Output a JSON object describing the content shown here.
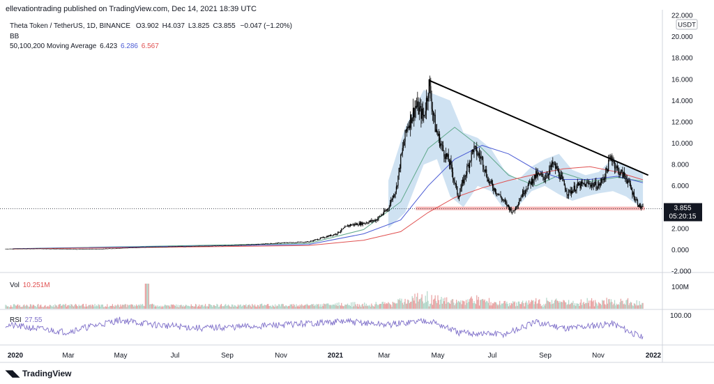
{
  "publisher_line": "ellevationtrading published on TradingView.com, Dec 14, 2021 18:39 UTC",
  "legend": {
    "symbol": "Theta Token / TetherUS, 1D, BINANCE",
    "ohlc": [
      {
        "k": "O",
        "v": "3.902"
      },
      {
        "k": "H",
        "v": "4.037"
      },
      {
        "k": "L",
        "v": "3.825"
      },
      {
        "k": "C",
        "v": "3.855"
      }
    ],
    "change": "−0.047 (−1.20%)",
    "bb_label": "BB",
    "ma_label": "50,100,200 Moving Average",
    "ma_values": [
      "6.423",
      "6.286",
      "6.567"
    ],
    "vol_label": "Vol",
    "vol_value": "10.251M",
    "rsi_label": "RSI",
    "rsi_value": "27.55"
  },
  "colors": {
    "up": "#26a69a",
    "down": "#000000",
    "candle": "#000000",
    "bb_fill": "#a8cbe8",
    "ma50": "#5fa88a",
    "ma100": "#4a5bd4",
    "ma200": "#e05050",
    "trendline": "#000000",
    "support": "#f5b5b5",
    "rsi": "#7e6fc9",
    "vol_up": "#e8a0a0",
    "vol_down": "#b0d6c8",
    "price_tag": "#131722"
  },
  "brand": "TradingView",
  "chart_data": {
    "type": "line",
    "title": "Theta Token / TetherUS, 1D, BINANCE",
    "price_axis_currency": "USDT",
    "y_ticks": [
      "22.000",
      "20.000",
      "18.000",
      "16.000",
      "14.000",
      "12.000",
      "10.000",
      "8.000",
      "6.000",
      "4.000",
      "2.000",
      "0.000",
      "-2.000"
    ],
    "ylim": [
      -2,
      22
    ],
    "x_ticks": [
      "2020",
      "Mar",
      "May",
      "Jul",
      "Sep",
      "Nov",
      "2021",
      "Mar",
      "May",
      "Jul",
      "Sep",
      "Nov",
      "2022"
    ],
    "xlim": [
      "2019-12-24",
      "2022-01-05"
    ],
    "last_price": "3.855",
    "countdown": "05:20:15",
    "vol_tick": "100M",
    "rsi_tick": "100.00",
    "series": [
      {
        "name": "Price",
        "x": [
          "2019-12-24",
          "2020-02-01",
          "2020-03-12",
          "2020-04-10",
          "2020-05-15",
          "2020-06-01",
          "2020-07-01",
          "2020-08-01",
          "2020-09-01",
          "2020-10-01",
          "2020-11-01",
          "2020-12-01",
          "2021-01-01",
          "2021-01-15",
          "2021-02-01",
          "2021-02-15",
          "2021-02-28",
          "2021-03-10",
          "2021-03-15",
          "2021-03-22",
          "2021-04-01",
          "2021-04-10",
          "2021-04-16",
          "2021-04-23",
          "2021-05-01",
          "2021-05-10",
          "2021-05-19",
          "2021-05-25",
          "2021-06-05",
          "2021-06-15",
          "2021-06-22",
          "2021-07-01",
          "2021-07-10",
          "2021-07-20",
          "2021-08-01",
          "2021-08-15",
          "2021-08-25",
          "2021-09-03",
          "2021-09-08",
          "2021-09-20",
          "2021-10-01",
          "2021-10-15",
          "2021-10-25",
          "2021-11-01",
          "2021-11-08",
          "2021-11-15",
          "2021-11-25",
          "2021-12-04",
          "2021-12-10",
          "2021-12-14"
        ],
        "values": [
          0.09,
          0.11,
          0.06,
          0.08,
          0.2,
          0.25,
          0.3,
          0.35,
          0.4,
          0.5,
          0.65,
          0.75,
          1.5,
          2.3,
          2.5,
          2.8,
          3.8,
          5.8,
          8.5,
          11.5,
          13.5,
          12.5,
          15.5,
          11.5,
          9.5,
          8.0,
          5.0,
          6.5,
          9.5,
          8.5,
          6.5,
          5.5,
          4.5,
          3.5,
          5.5,
          7.0,
          6.8,
          8.0,
          7.5,
          5.3,
          6.0,
          6.2,
          6.0,
          7.0,
          8.8,
          7.5,
          6.8,
          5.0,
          4.1,
          3.855
        ]
      },
      {
        "name": "MA50",
        "x": [
          "2020-01-01",
          "2020-12-01",
          "2021-02-01",
          "2021-03-15",
          "2021-04-15",
          "2021-05-15",
          "2021-06-15",
          "2021-07-15",
          "2021-08-15",
          "2021-09-15",
          "2021-10-15",
          "2021-11-15",
          "2021-12-14"
        ],
        "values": [
          0.1,
          0.6,
          1.9,
          4.5,
          9.5,
          11.5,
          9.5,
          7.0,
          6.0,
          7.2,
          6.4,
          6.8,
          6.42
        ]
      },
      {
        "name": "MA100",
        "x": [
          "2020-01-01",
          "2020-12-01",
          "2021-02-01",
          "2021-03-15",
          "2021-04-15",
          "2021-05-15",
          "2021-06-15",
          "2021-07-15",
          "2021-08-15",
          "2021-09-15",
          "2021-10-15",
          "2021-11-15",
          "2021-12-14"
        ],
        "values": [
          0.1,
          0.5,
          1.5,
          2.8,
          6.0,
          8.5,
          9.8,
          9.0,
          7.5,
          6.6,
          6.6,
          6.9,
          6.29
        ]
      },
      {
        "name": "MA200",
        "x": [
          "2020-01-01",
          "2020-12-01",
          "2021-02-01",
          "2021-03-15",
          "2021-04-15",
          "2021-05-15",
          "2021-06-15",
          "2021-07-15",
          "2021-08-15",
          "2021-09-15",
          "2021-10-15",
          "2021-11-15",
          "2021-12-14"
        ],
        "values": [
          0.08,
          0.4,
          0.9,
          1.7,
          3.5,
          4.9,
          5.8,
          6.5,
          7.1,
          7.6,
          7.8,
          7.3,
          6.57
        ]
      }
    ],
    "bb_band": {
      "x": [
        "2021-03-01",
        "2021-03-20",
        "2021-04-10",
        "2021-04-25",
        "2021-05-10",
        "2021-05-25",
        "2021-06-10",
        "2021-06-25",
        "2021-07-10",
        "2021-07-25",
        "2021-08-10",
        "2021-08-25",
        "2021-09-10",
        "2021-09-25",
        "2021-10-10",
        "2021-10-25",
        "2021-11-10",
        "2021-11-25",
        "2021-12-14"
      ],
      "upper": [
        6.5,
        11.5,
        15.0,
        14.5,
        14.0,
        11.0,
        10.5,
        9.5,
        7.5,
        6.5,
        7.8,
        8.5,
        9.0,
        7.5,
        7.0,
        7.3,
        8.6,
        7.8,
        7.2
      ],
      "lower": [
        2.0,
        3.5,
        8.0,
        8.5,
        5.0,
        4.0,
        6.0,
        5.5,
        3.8,
        4.0,
        5.5,
        6.0,
        5.2,
        4.6,
        5.0,
        5.3,
        5.5,
        5.0,
        3.8
      ]
    },
    "trendline": {
      "x": [
        "2021-04-16",
        "2021-12-20"
      ],
      "values": [
        15.9,
        7.0
      ]
    },
    "support": {
      "x": [
        "2021-04-01",
        "2021-12-16"
      ],
      "value": 3.85
    },
    "volume_max_label": "100M",
    "rsi": {
      "x": [
        "2019-12-24",
        "2020-03-01",
        "2020-05-01",
        "2020-06-10",
        "2020-08-01",
        "2020-10-01",
        "2020-12-01",
        "2021-01-10",
        "2021-03-01",
        "2021-04-15",
        "2021-05-20",
        "2021-07-10",
        "2021-08-15",
        "2021-09-20",
        "2021-11-10",
        "2021-12-14"
      ],
      "values": [
        55,
        40,
        65,
        55,
        48,
        52,
        58,
        62,
        55,
        65,
        38,
        35,
        60,
        48,
        58,
        27.55
      ]
    }
  }
}
